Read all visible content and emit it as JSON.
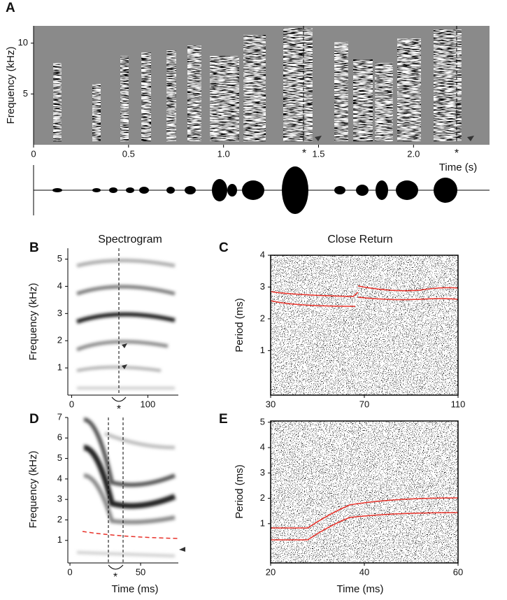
{
  "panels": [
    {
      "label": "A",
      "ylabel": "Frequency (kHz)",
      "xlabel": "Time (s)",
      "ylim": [
        0,
        11.7
      ],
      "yticks": [
        5,
        10
      ],
      "xlim": [
        0,
        2.4
      ],
      "xticks": [
        0,
        0.5,
        {
          "value": 1,
          "label": "1.0"
        },
        1.5,
        {
          "value": 2,
          "label": "2.0"
        }
      ],
      "markers": [
        "*",
        "*"
      ]
    },
    {
      "label": "B",
      "title": "Spectrogram",
      "ylabel": "Frequency (kHz)",
      "ylim": [
        0,
        5.4
      ],
      "yticks": [
        1,
        2,
        3,
        4,
        5
      ],
      "xlim": [
        -5,
        140
      ],
      "xticks": [
        0,
        100
      ],
      "markers": [
        "*"
      ]
    },
    {
      "label": "C",
      "title": "Close Return",
      "ylabel": "Period (ms)",
      "ylim": [
        -0.4,
        4
      ],
      "yticks": [
        1,
        2,
        3,
        4
      ],
      "xlim": [
        30,
        110
      ],
      "xticks": [
        30,
        70,
        110
      ]
    },
    {
      "label": "D",
      "ylabel": "Frequency (kHz)",
      "xlabel": "Time (ms)",
      "ylim": [
        -0.1,
        7
      ],
      "yticks": [
        1,
        2,
        3,
        4,
        5,
        6,
        7
      ],
      "xlim": [
        -1.5,
        76.7
      ],
      "xticks": [
        0,
        50
      ],
      "markers": [
        "*"
      ]
    },
    {
      "label": "E",
      "ylabel": "Period (ms)",
      "xlabel": "Time (ms)",
      "ylim": [
        -0.55,
        5.05
      ],
      "yticks": [
        1,
        2,
        3,
        4,
        5
      ],
      "xlim": [
        20,
        60
      ],
      "xticks": [
        20,
        40,
        60
      ]
    }
  ]
}
